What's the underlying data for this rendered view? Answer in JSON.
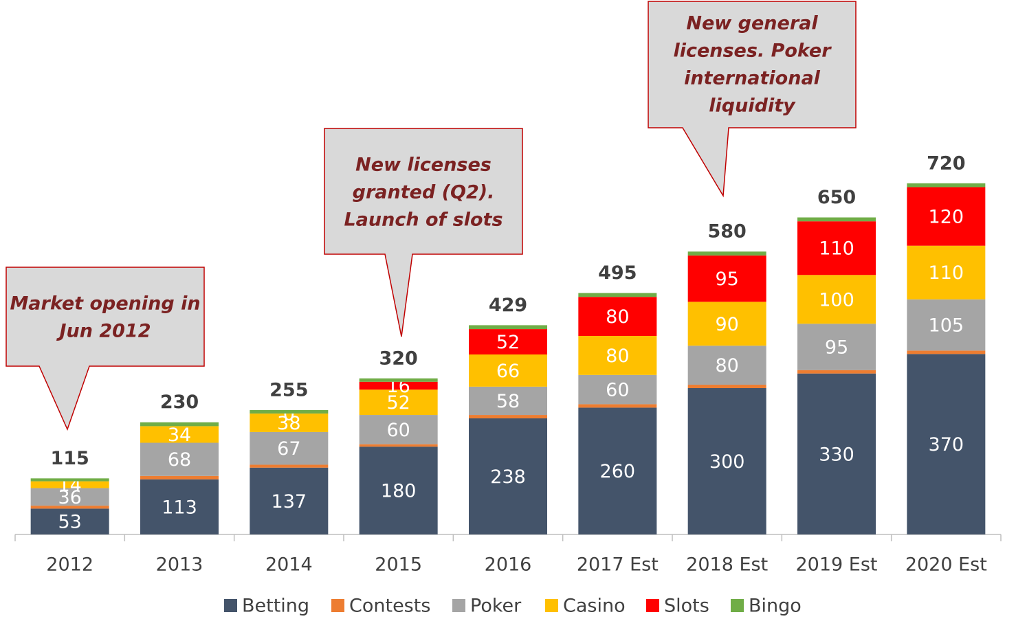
{
  "chart_data": {
    "type": "stacked_bar",
    "categories": [
      "2012",
      "2013",
      "2014",
      "2015",
      "2016",
      "2017 Est",
      "2018 Est",
      "2019 Est",
      "2020 Est"
    ],
    "series": [
      {
        "name": "Betting",
        "color": "#44546a",
        "data_labels": true,
        "values": [
          53,
          113,
          137,
          180,
          238,
          260,
          300,
          330,
          370
        ]
      },
      {
        "name": "Contests",
        "color": "#ed7d31",
        "data_labels": false,
        "values": [
          6,
          7,
          6,
          5,
          7,
          7,
          7,
          7,
          7
        ]
      },
      {
        "name": "Poker",
        "color": "#a5a5a5",
        "data_labels": true,
        "values": [
          36,
          68,
          67,
          60,
          58,
          60,
          80,
          95,
          105
        ]
      },
      {
        "name": "Casino",
        "color": "#ffc000",
        "data_labels": true,
        "values": [
          14,
          34,
          38,
          52,
          66,
          80,
          90,
          100,
          110
        ]
      },
      {
        "name": "Slots",
        "color": "#ff0000",
        "data_labels": true,
        "values": [
          null,
          null,
          0,
          16,
          52,
          80,
          95,
          110,
          120
        ]
      },
      {
        "name": "Bingo",
        "color": "#70ad47",
        "data_labels": false,
        "values": [
          6,
          8,
          7,
          7,
          8,
          8,
          8,
          8,
          8
        ]
      }
    ],
    "totals": [
      115,
      230,
      255,
      320,
      429,
      495,
      580,
      650,
      720
    ],
    "ylim": [
      0,
      800
    ],
    "annotations": [
      {
        "lines": [
          "Market opening in",
          "Jun 2012"
        ]
      },
      {
        "lines": [
          "New licenses",
          "granted (Q2).",
          "Launch of slots"
        ]
      },
      {
        "lines": [
          "New general",
          "licenses. Poker",
          "international",
          "liquidity"
        ]
      }
    ]
  }
}
